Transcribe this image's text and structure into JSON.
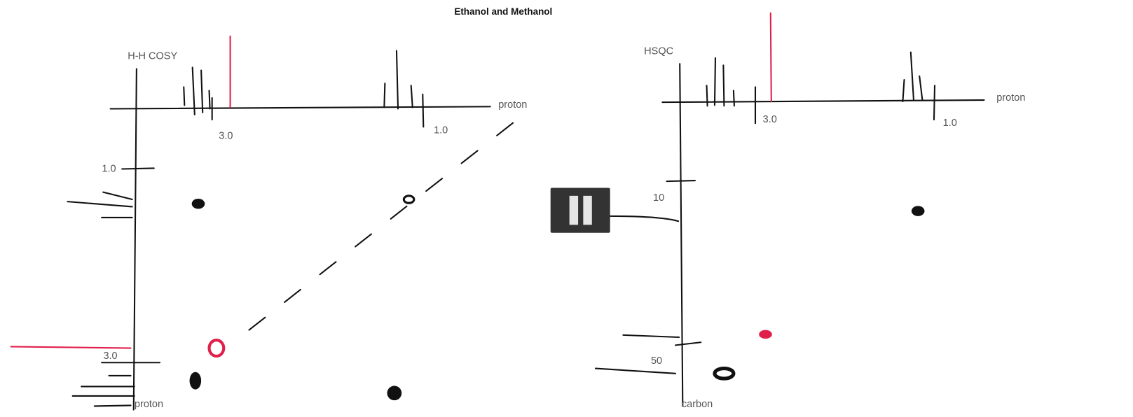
{
  "title": "Ethanol and Methanol",
  "panels": [
    {
      "label": "H-H COSY",
      "x_axis": {
        "label": "proton",
        "ticks": [
          "3.0",
          "1.0"
        ]
      },
      "y_axis": {
        "label": "proton",
        "ticks": [
          "1.0",
          "3.0"
        ]
      }
    },
    {
      "label": "HSQC",
      "x_axis": {
        "label": "proton",
        "ticks": [
          "3.0",
          "1.0"
        ]
      },
      "y_axis": {
        "label": "carbon",
        "ticks": [
          "10",
          "50"
        ]
      }
    }
  ]
}
